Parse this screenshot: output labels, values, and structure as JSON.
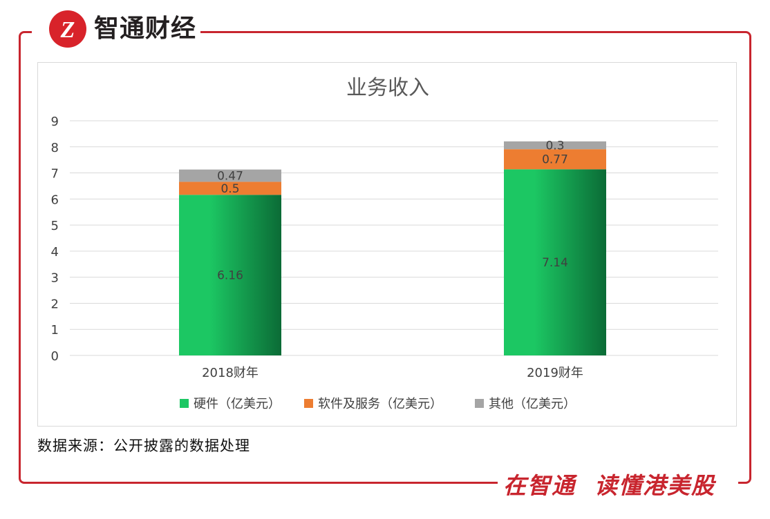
{
  "brand": {
    "name": "智通财经",
    "slogan": "在智通  读懂港美股",
    "logo_glyph": "Z"
  },
  "source_note": "数据来源：公开披露的数据处理",
  "colors": {
    "frame": "#c8252e",
    "hardware_light": "#1cc763",
    "hardware_dark": "#0b6b36",
    "software": "#ed7d31",
    "other": "#a5a5a5",
    "grid": "#d9d9d9"
  },
  "chart_data": {
    "type": "bar",
    "stacked": true,
    "title": "业务收入",
    "categories": [
      "2018财年",
      "2019财年"
    ],
    "series": [
      {
        "name": "硬件（亿美元）",
        "values": [
          6.16,
          7.14
        ],
        "labels": [
          "6.16",
          "7.14"
        ]
      },
      {
        "name": "软件及服务（亿美元）",
        "values": [
          0.5,
          0.77
        ],
        "labels": [
          "0.5",
          "0.77"
        ]
      },
      {
        "name": "其他（亿美元）",
        "values": [
          0.47,
          0.3
        ],
        "labels": [
          "0.47",
          "0.3"
        ]
      }
    ],
    "yticks": [
      "0",
      "1",
      "2",
      "3",
      "4",
      "5",
      "6",
      "7",
      "8",
      "9"
    ],
    "ylim": [
      0,
      9
    ],
    "grid": true,
    "legend": "bottom"
  }
}
